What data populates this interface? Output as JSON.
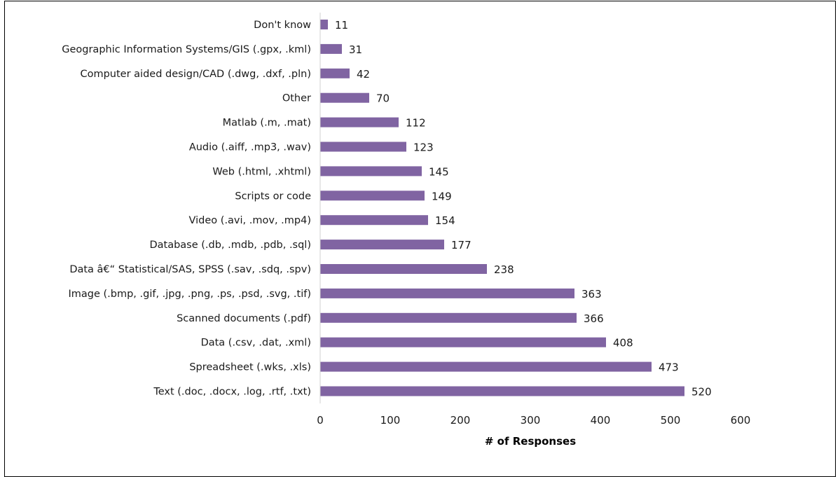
{
  "chart_data": {
    "type": "bar",
    "orientation": "horizontal",
    "categories": [
      "Don't know",
      "Geographic Information Systems/GIS (.gpx, .kml)",
      "Computer aided design/CAD (.dwg, .dxf, .pln)",
      "Other",
      "Matlab (.m, .mat)",
      "Audio (.aiff, .mp3, .wav)",
      "Web (.html, .xhtml)",
      "Scripts or code",
      "Video (.avi, .mov, .mp4)",
      "Database (.db, .mdb, .pdb, .sql)",
      "Data â€“ Statistical/SAS, SPSS (.sav, .sdq, .spv)",
      "Image (.bmp, .gif, .jpg, .png, .ps, .psd, .svg, .tif)",
      "Scanned documents (.pdf)",
      "Data (.csv, .dat, .xml)",
      "Spreadsheet (.wks, .xls)",
      "Text (.doc, .docx, .log, .rtf, .txt)"
    ],
    "values": [
      11,
      31,
      42,
      70,
      112,
      123,
      145,
      149,
      154,
      177,
      238,
      363,
      366,
      408,
      473,
      520
    ],
    "value_labels": [
      "11",
      "31",
      "42",
      "70",
      "112",
      "123",
      "145",
      "149",
      "154",
      "177",
      "238",
      "363",
      "366",
      "408",
      "473",
      "520"
    ],
    "xlabel": "# of Responses",
    "ylabel": "",
    "xlim": [
      0,
      600
    ],
    "x_ticks": [
      "0",
      "100",
      "200",
      "300",
      "400",
      "500",
      "600"
    ],
    "grid": false,
    "bar_color": "#8064a2"
  }
}
